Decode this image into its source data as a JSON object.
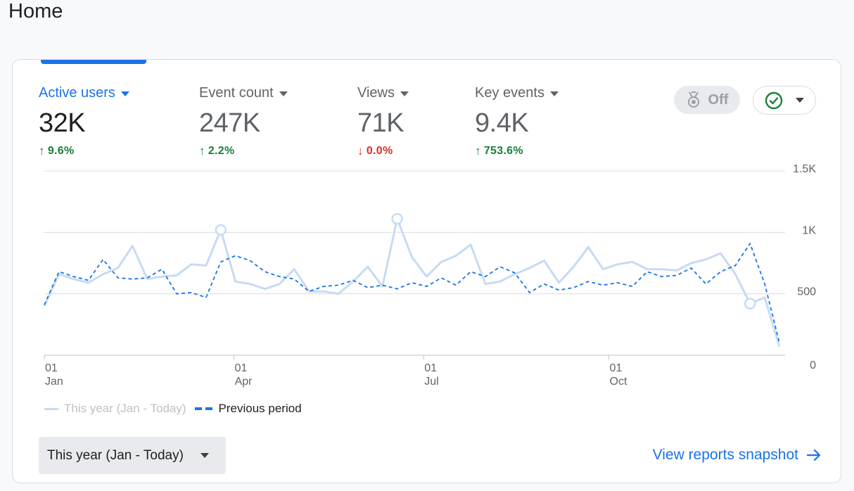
{
  "page": {
    "title": "Home"
  },
  "metrics": [
    {
      "label": "Active users",
      "value": "32K",
      "change": "9.6%",
      "direction": "up",
      "active": true
    },
    {
      "label": "Event count",
      "value": "247K",
      "change": "2.2%",
      "direction": "up",
      "active": false
    },
    {
      "label": "Views",
      "value": "71K",
      "change": "0.0%",
      "direction": "down",
      "active": false
    },
    {
      "label": "Key events",
      "value": "9.4K",
      "change": "753.6%",
      "direction": "up",
      "active": false
    }
  ],
  "controls": {
    "insights_toggle_label": "Off",
    "insights_icon": "medal-icon",
    "status_icon": "check-circle-icon"
  },
  "colors": {
    "accent": "#1a73e8",
    "up": "#188038",
    "down": "#d93025",
    "this_year_line": "#c6dbf3",
    "previous_line": "#1a73e8"
  },
  "chart_data": {
    "type": "line",
    "y_ticks": [
      "1.5K",
      "1K",
      "500",
      "0"
    ],
    "ylim": [
      0,
      1500
    ],
    "x_ticks": [
      {
        "day": "01",
        "month": "Jan"
      },
      {
        "day": "01",
        "month": "Apr"
      },
      {
        "day": "01",
        "month": "Jul"
      },
      {
        "day": "01",
        "month": "Oct"
      }
    ],
    "series": [
      {
        "name": "This year (Jan - Today)",
        "style": "solid",
        "values": [
          400,
          660,
          620,
          590,
          660,
          710,
          890,
          620,
          640,
          650,
          740,
          730,
          1020,
          600,
          580,
          540,
          580,
          700,
          520,
          520,
          500,
          600,
          720,
          560,
          1110,
          800,
          640,
          760,
          810,
          900,
          580,
          600,
          660,
          710,
          770,
          590,
          720,
          880,
          700,
          740,
          760,
          700,
          700,
          690,
          750,
          780,
          830,
          660,
          420,
          470,
          70
        ],
        "markers": [
          12,
          24,
          48
        ]
      },
      {
        "name": "Previous period",
        "style": "dashed",
        "values": [
          410,
          680,
          640,
          610,
          780,
          630,
          620,
          630,
          700,
          500,
          510,
          470,
          760,
          810,
          770,
          680,
          640,
          620,
          520,
          560,
          570,
          610,
          550,
          570,
          540,
          590,
          560,
          630,
          570,
          680,
          640,
          720,
          670,
          510,
          580,
          530,
          550,
          600,
          570,
          590,
          560,
          680,
          640,
          650,
          710,
          580,
          680,
          730,
          910,
          580,
          100
        ]
      }
    ]
  },
  "legend": {
    "this_year": "This year (Jan - Today)",
    "previous": "Previous period"
  },
  "footer": {
    "date_range": "This year (Jan - Today)",
    "snapshot_link": "View reports snapshot"
  }
}
